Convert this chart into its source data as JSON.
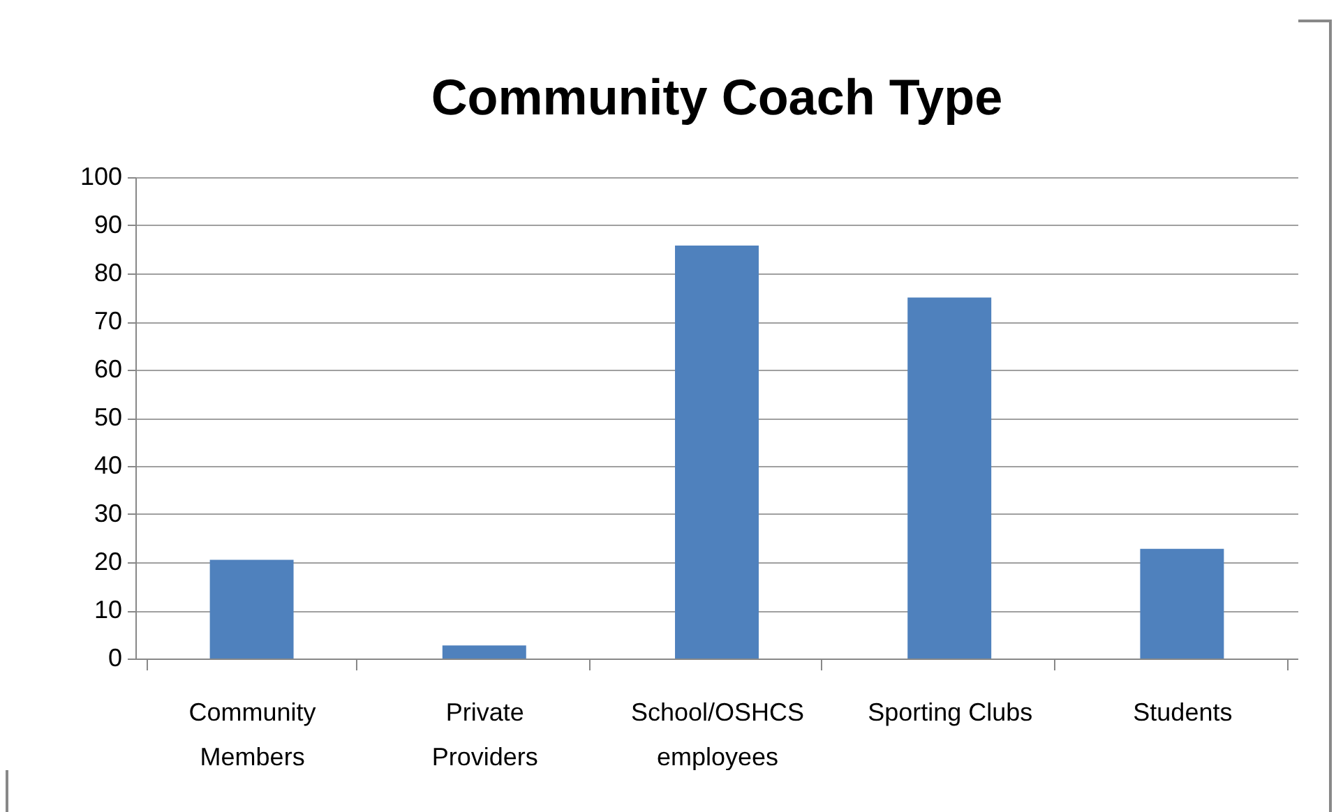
{
  "chart_data": {
    "type": "bar",
    "title": "Community Coach Type",
    "categories": [
      "Community Members",
      "Private Providers",
      "School/OSHCS employees",
      "Sporting Clubs",
      "Students"
    ],
    "values": [
      20.5,
      2.7,
      85.8,
      75,
      22.8
    ],
    "color": "#4f81bd",
    "ylim": [
      0,
      100
    ],
    "yticks": [
      0,
      10,
      20,
      30,
      40,
      50,
      60,
      70,
      80,
      90,
      100
    ],
    "grid": "y"
  }
}
